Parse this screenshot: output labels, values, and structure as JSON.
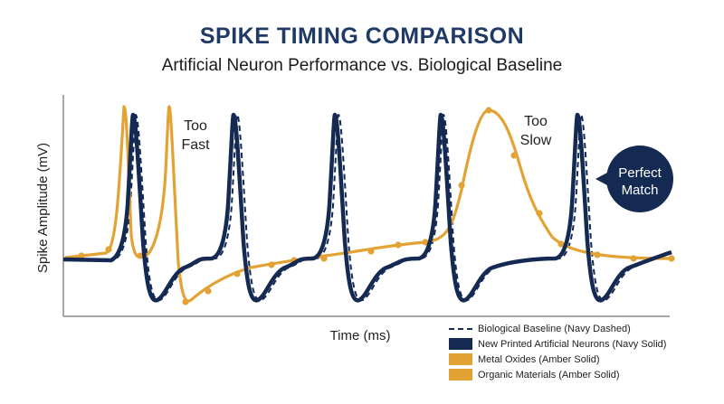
{
  "chart_data": {
    "type": "line",
    "title": "SPIKE TIMING COMPARISON",
    "subtitle": "Artificial Neuron Performance vs. Biological Baseline",
    "xlabel": "Time (ms)",
    "ylabel": "Spike Amplitude (mV)",
    "x_ticks_visible": false,
    "y_ticks_visible": false,
    "grid": false,
    "legend_position": "bottom-right",
    "annotations": {
      "too_fast": [
        "Too",
        "Fast"
      ],
      "too_slow": [
        "Too",
        "Slow"
      ],
      "perfect_match": [
        "Perfect",
        "Match"
      ]
    },
    "series": [
      {
        "name": "Biological Baseline (Navy Dashed)",
        "style": "dashed",
        "color": "#142a52",
        "spike_times": [
          150,
          262,
          374,
          490,
          642
        ]
      },
      {
        "name": "New Printed Artificial Neurons (Navy Solid)",
        "style": "solid",
        "color": "#142a52",
        "spike_times": [
          147,
          258,
          370,
          487,
          638
        ]
      },
      {
        "name": "Metal Oxides (Amber Solid)",
        "style": "solid",
        "color": "#e3a234",
        "spike_times": [
          137,
          187
        ]
      },
      {
        "name": "Organic Materials (Amber Solid)",
        "style": "solid",
        "color": "#e3a234",
        "spike_times": [
          540
        ]
      }
    ]
  },
  "colors": {
    "navy": "#142a52",
    "amber": "#e3a234",
    "title": "#1f3a66",
    "axis": "#777777"
  }
}
